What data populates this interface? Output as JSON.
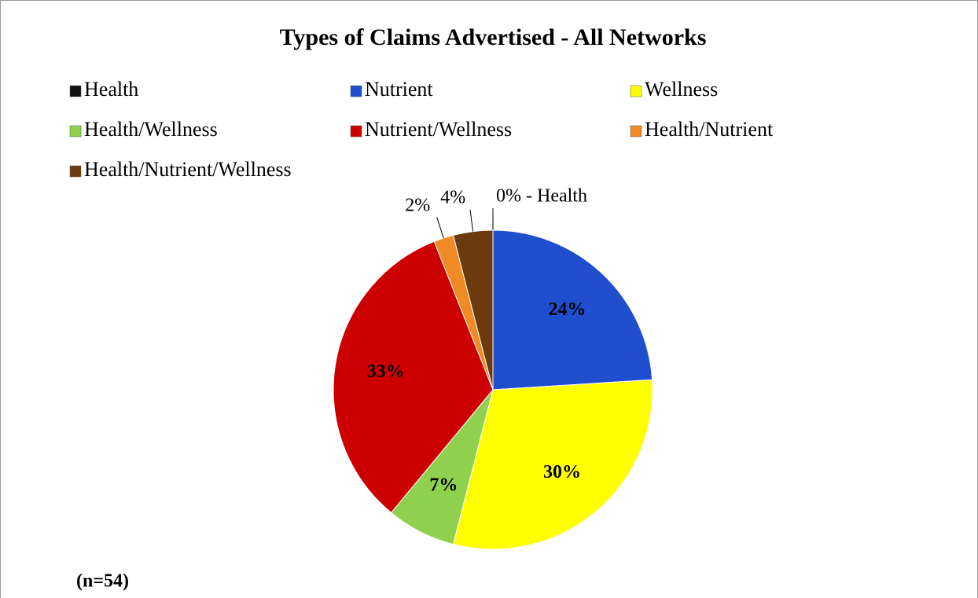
{
  "chart_data": {
    "type": "pie",
    "title": "Types of Claims Advertised - All Networks",
    "categories": [
      "Health",
      "Nutrient",
      "Wellness",
      "Health/Wellness",
      "Nutrient/Wellness",
      "Health/Nutrient",
      "Health/Nutrient/Wellness"
    ],
    "values": [
      0,
      24,
      30,
      7,
      33,
      2,
      4
    ],
    "value_labels": [
      "0% - Health",
      "24%",
      "30%",
      "7%",
      "33%",
      "2%",
      "4%"
    ],
    "colors": [
      "#111111",
      "#1f4fcf",
      "#ffff00",
      "#8fd14f",
      "#cc0000",
      "#f08a24",
      "#6b3a0f"
    ],
    "legend": "top",
    "annotations": [
      "(n=54)"
    ]
  }
}
